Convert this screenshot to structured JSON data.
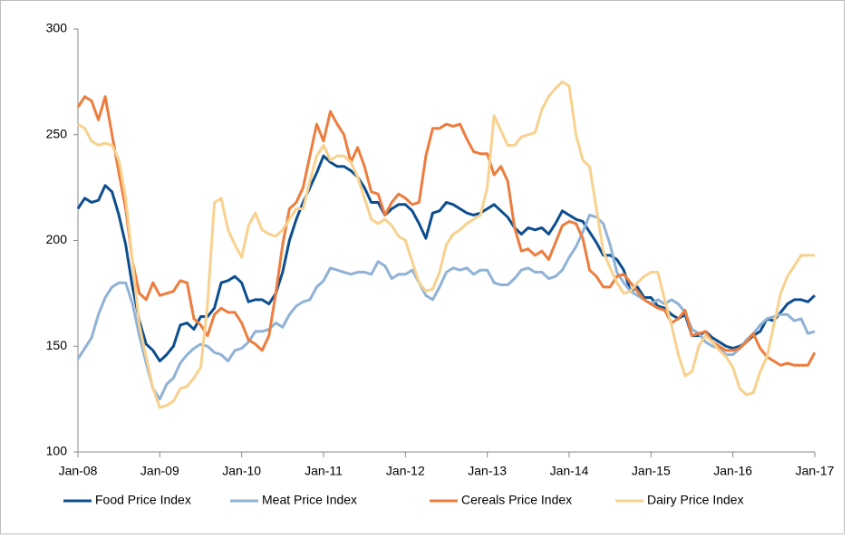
{
  "chart_data": {
    "type": "line",
    "categories": [
      "Jan-08",
      null,
      null,
      null,
      null,
      null,
      null,
      null,
      null,
      null,
      null,
      null,
      "Jan-09",
      null,
      null,
      null,
      null,
      null,
      null,
      null,
      null,
      null,
      null,
      null,
      "Jan-10",
      null,
      null,
      null,
      null,
      null,
      null,
      null,
      null,
      null,
      null,
      null,
      "Jan-11",
      null,
      null,
      null,
      null,
      null,
      null,
      null,
      null,
      null,
      null,
      null,
      "Jan-12",
      null,
      null,
      null,
      null,
      null,
      null,
      null,
      null,
      null,
      null,
      null,
      "Jan-13",
      null,
      null,
      null,
      null,
      null,
      null,
      null,
      null,
      null,
      null,
      null,
      "Jan-14",
      null,
      null,
      null,
      null,
      null,
      null,
      null,
      null,
      null,
      null,
      null,
      "Jan-15",
      null,
      null,
      null,
      null,
      null,
      null,
      null,
      null,
      null,
      null,
      null,
      "Jan-16",
      null,
      null,
      null,
      null,
      null,
      null,
      null,
      null,
      null,
      null,
      null,
      "Jan-17"
    ],
    "series": [
      {
        "name": "Food Price Index",
        "color": "#0d4e8e",
        "values": [
          215,
          220,
          218,
          219,
          226,
          223,
          212,
          198,
          178,
          162,
          151,
          148,
          143,
          146,
          150,
          160,
          161,
          158,
          164,
          164,
          168,
          180,
          181,
          183,
          180,
          171,
          172,
          172,
          170,
          175,
          185,
          200,
          210,
          218,
          225,
          232,
          240,
          237,
          235,
          235,
          233,
          230,
          225,
          218,
          218,
          212,
          215,
          217,
          217,
          214,
          208,
          201,
          213,
          214,
          218,
          217,
          215,
          213,
          212,
          213,
          215,
          217,
          214,
          211,
          206,
          203,
          206,
          205,
          206,
          203,
          208,
          214,
          212,
          210,
          209,
          204,
          199,
          193,
          193,
          191,
          186,
          176,
          178,
          173,
          173,
          169,
          168,
          165,
          163,
          165,
          155,
          155,
          157,
          154,
          152,
          150,
          149,
          150,
          152,
          155,
          157,
          163,
          162,
          166,
          170,
          172,
          172,
          171,
          174
        ]
      },
      {
        "name": "Meat Price Index",
        "color": "#8fb2d6",
        "values": [
          144,
          149,
          154,
          165,
          173,
          178,
          180,
          180,
          170,
          155,
          142,
          130,
          125,
          132,
          135,
          142,
          146,
          149,
          151,
          150,
          147,
          146,
          143,
          148,
          149,
          152,
          157,
          157,
          158,
          161,
          159,
          165,
          169,
          171,
          172,
          178,
          181,
          187,
          186,
          185,
          184,
          185,
          185,
          184,
          190,
          188,
          182,
          184,
          184,
          186,
          180,
          174,
          172,
          178,
          185,
          187,
          186,
          187,
          184,
          186,
          186,
          180,
          179,
          179,
          182,
          186,
          187,
          185,
          185,
          182,
          183,
          186,
          192,
          197,
          204,
          212,
          211,
          208,
          198,
          185,
          180,
          176,
          174,
          172,
          170,
          172,
          170,
          172,
          170,
          166,
          158,
          156,
          152,
          150,
          149,
          146,
          146,
          149,
          153,
          156,
          160,
          163,
          164,
          165,
          165,
          162,
          163,
          156,
          157
        ]
      },
      {
        "name": "Cereals Price Index",
        "color": "#ed7d3e",
        "values": [
          263,
          268,
          266,
          257,
          268,
          250,
          232,
          215,
          190,
          175,
          172,
          180,
          174,
          175,
          176,
          181,
          180,
          163,
          160,
          155,
          165,
          168,
          166,
          166,
          161,
          153,
          151,
          148,
          155,
          175,
          198,
          215,
          218,
          225,
          240,
          255,
          247,
          261,
          255,
          250,
          237,
          244,
          235,
          223,
          222,
          212,
          218,
          222,
          220,
          217,
          218,
          240,
          253,
          253,
          255,
          254,
          255,
          248,
          242,
          241,
          241,
          231,
          235,
          228,
          206,
          195,
          196,
          193,
          195,
          191,
          199,
          207,
          209,
          208,
          201,
          186,
          183,
          178,
          178,
          183,
          184,
          180,
          176,
          172,
          170,
          168,
          167,
          161,
          163,
          167,
          155,
          156,
          157,
          152,
          150,
          148,
          148,
          149,
          152,
          156,
          149,
          145,
          143,
          141,
          142,
          141,
          141,
          141,
          147
        ]
      },
      {
        "name": "Dairy Price Index",
        "color": "#f8d18e",
        "values": [
          255,
          253,
          247,
          245,
          246,
          245,
          238,
          220,
          190,
          160,
          145,
          130,
          121,
          122,
          124,
          130,
          131,
          135,
          140,
          170,
          218,
          220,
          205,
          198,
          192,
          207,
          213,
          205,
          203,
          202,
          205,
          210,
          215,
          215,
          228,
          240,
          245,
          238,
          240,
          240,
          237,
          230,
          220,
          210,
          208,
          210,
          207,
          202,
          200,
          190,
          180,
          176,
          177,
          185,
          198,
          203,
          205,
          208,
          210,
          212,
          225,
          259,
          252,
          245,
          245,
          249,
          250,
          251,
          262,
          268,
          272,
          275,
          273,
          250,
          238,
          235,
          215,
          195,
          187,
          180,
          175,
          176,
          180,
          183,
          185,
          185,
          172,
          160,
          146,
          136,
          138,
          150,
          155,
          152,
          148,
          145,
          140,
          130,
          127,
          128,
          138,
          145,
          160,
          175,
          183,
          188,
          193,
          193,
          193
        ]
      }
    ],
    "ylim": [
      100,
      300
    ],
    "yticks": [
      100,
      150,
      200,
      250,
      300
    ],
    "legend": "bottom"
  }
}
